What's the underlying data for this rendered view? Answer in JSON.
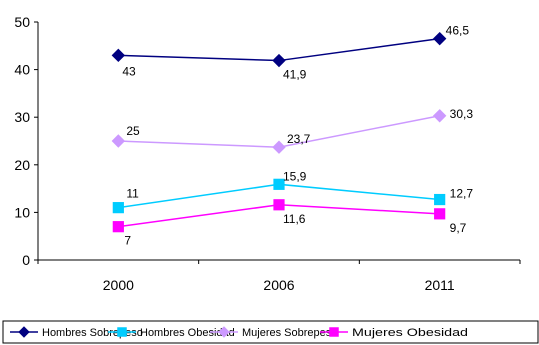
{
  "chart_data": {
    "type": "line",
    "categories": [
      "2000",
      "2006",
      "2011"
    ],
    "ylim": [
      0,
      50
    ],
    "yticks": [
      0,
      10,
      20,
      30,
      40,
      50
    ],
    "grid": false,
    "legend_position": "bottom",
    "series": [
      {
        "name": "Hombres  Sobrepeso",
        "values": [
          43,
          41.9,
          46.5
        ],
        "labels": [
          "43",
          "41,9",
          "46,5"
        ],
        "color": "#000080",
        "marker": "diamond"
      },
      {
        "name": "Hombres  Obesidad",
        "values": [
          11,
          15.9,
          12.7
        ],
        "labels": [
          "11",
          "15,9",
          "12,7"
        ],
        "color": "#00CCFF",
        "marker": "square"
      },
      {
        "name": "Mujeres Sobrepeso",
        "values": [
          25,
          23.7,
          30.3
        ],
        "labels": [
          "25",
          "23,7",
          "30,3"
        ],
        "color": "#CC99FF",
        "marker": "diamond"
      },
      {
        "name": "Mujeres Obesidad",
        "values": [
          7,
          11.6,
          9.7
        ],
        "labels": [
          "7",
          "11,6",
          "9,7"
        ],
        "color": "#FF00FF",
        "marker": "square"
      }
    ]
  }
}
